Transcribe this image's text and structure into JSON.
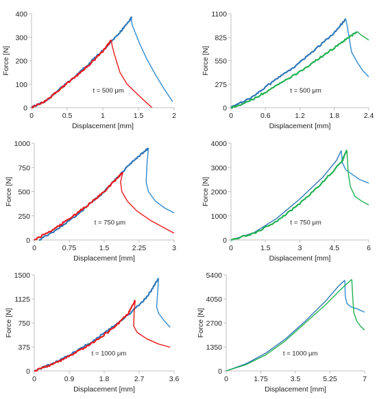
{
  "colors": {
    "blue": "#2e75b6",
    "lightblue": "#2e8bd0",
    "red": "#e8191b",
    "green": "#21b050"
  },
  "chart_data": [
    {
      "type": "line",
      "xlabel": "Displacement [mm]",
      "ylabel": "Force [N]",
      "xlim": [
        0,
        2
      ],
      "ylim": [
        0,
        400
      ],
      "xticks": [
        "0",
        "0.5",
        "1",
        "1.5",
        "2"
      ],
      "yticks": [
        "0",
        "100",
        "200",
        "300",
        "400"
      ],
      "annotation": "t = 500 μm",
      "series": [
        {
          "color": "blue",
          "noisy": true,
          "x": [
            0,
            0.2,
            0.4,
            0.6,
            0.8,
            1.0,
            1.2,
            1.38,
            1.4
          ],
          "y": [
            0,
            30,
            80,
            130,
            185,
            245,
            305,
            375,
            383
          ]
        },
        {
          "color": "lightblue",
          "x": [
            1.4,
            1.41,
            1.44,
            1.52,
            1.62,
            1.74,
            1.86,
            1.98
          ],
          "y": [
            383,
            355,
            330,
            270,
            205,
            140,
            80,
            25
          ]
        },
        {
          "color": "red",
          "noisy": true,
          "x": [
            0,
            0.2,
            0.4,
            0.6,
            0.8,
            1.0,
            1.12
          ],
          "y": [
            0,
            28,
            78,
            128,
            180,
            240,
            288
          ]
        },
        {
          "color": "red",
          "x": [
            1.12,
            1.13,
            1.16,
            1.24,
            1.34,
            1.46,
            1.58,
            1.69
          ],
          "y": [
            288,
            265,
            230,
            150,
            100,
            65,
            30,
            0
          ]
        }
      ]
    },
    {
      "type": "line",
      "xlabel": "Displacement [mm]",
      "ylabel": "Force [N]",
      "xlim": [
        0,
        2.4
      ],
      "ylim": [
        0,
        1100
      ],
      "xticks": [
        "0",
        "0.6",
        "1.2",
        "1.8",
        "2.4"
      ],
      "yticks": [
        "0",
        "275",
        "550",
        "825",
        "1100"
      ],
      "annotation": "t = 500 μm",
      "series": [
        {
          "color": "blue",
          "noisy": true,
          "x": [
            0,
            0.3,
            0.6,
            0.9,
            1.2,
            1.5,
            1.8,
            2.0
          ],
          "y": [
            0,
            100,
            240,
            380,
            530,
            700,
            880,
            1040
          ]
        },
        {
          "color": "lightblue",
          "x": [
            2.0,
            2.02,
            2.05,
            2.1,
            2.2,
            2.3,
            2.4
          ],
          "y": [
            1040,
            970,
            850,
            650,
            530,
            430,
            360
          ]
        },
        {
          "color": "green",
          "noisy": true,
          "x": [
            0,
            0.3,
            0.6,
            0.9,
            1.2,
            1.5,
            1.8,
            2.0,
            2.2
          ],
          "y": [
            0,
            70,
            180,
            300,
            420,
            560,
            700,
            800,
            890
          ]
        },
        {
          "color": "green",
          "x": [
            2.2,
            2.25,
            2.3,
            2.35,
            2.4
          ],
          "y": [
            890,
            860,
            835,
            815,
            790
          ]
        }
      ]
    },
    {
      "type": "line",
      "xlabel": "Displacement [mm]",
      "ylabel": "Force [N]",
      "xlim": [
        0,
        3
      ],
      "ylim": [
        0,
        1000
      ],
      "xticks": [
        "0",
        "0.75",
        "1.5",
        "2.25",
        "3"
      ],
      "yticks": [
        "0",
        "250",
        "500",
        "750",
        "1000"
      ],
      "annotation": "t = 750 μm",
      "series": [
        {
          "color": "blue",
          "noisy": true,
          "x": [
            0.1,
            0.5,
            1.0,
            1.5,
            2.0,
            2.3,
            2.45
          ],
          "y": [
            0,
            110,
            290,
            500,
            760,
            890,
            950
          ]
        },
        {
          "color": "lightblue",
          "x": [
            2.45,
            2.42,
            2.4,
            2.45,
            2.6,
            2.8,
            3.0
          ],
          "y": [
            950,
            800,
            600,
            500,
            400,
            330,
            280
          ]
        },
        {
          "color": "red",
          "noisy": true,
          "x": [
            0,
            0.3,
            0.6,
            0.9,
            1.2,
            1.5,
            1.8,
            1.9
          ],
          "y": [
            0,
            80,
            170,
            270,
            380,
            500,
            650,
            700
          ]
        },
        {
          "color": "red",
          "x": [
            1.9,
            1.85,
            1.88,
            2.0,
            2.2,
            2.5,
            3.0
          ],
          "y": [
            700,
            600,
            500,
            400,
            300,
            200,
            70
          ]
        }
      ]
    },
    {
      "type": "line",
      "xlabel": "Displacement [mm]",
      "ylabel": "Force [N]",
      "xlim": [
        0,
        6
      ],
      "ylim": [
        0,
        4000
      ],
      "xticks": [
        "0",
        "1.5",
        "3",
        "4.5",
        "6"
      ],
      "yticks": [
        "0",
        "1000",
        "2000",
        "3000",
        "4000"
      ],
      "annotation": "t = 750 μm",
      "series": [
        {
          "color": "blue",
          "x": [
            0,
            1,
            2,
            3,
            4,
            4.6,
            4.8
          ],
          "y": [
            0,
            300,
            900,
            1700,
            2600,
            3300,
            3700
          ]
        },
        {
          "color": "lightblue",
          "x": [
            4.8,
            4.85,
            5.0,
            5.3,
            5.6,
            6.0
          ],
          "y": [
            3700,
            3200,
            2900,
            2700,
            2500,
            2350
          ]
        },
        {
          "color": "green",
          "noisy": true,
          "x": [
            0,
            1,
            2,
            3,
            4,
            4.8,
            5.05
          ],
          "y": [
            0,
            280,
            780,
            1500,
            2400,
            3200,
            3700
          ]
        },
        {
          "color": "green",
          "x": [
            5.05,
            5.1,
            5.2,
            5.4,
            5.7,
            6.0
          ],
          "y": [
            3700,
            2800,
            2200,
            1800,
            1600,
            1450
          ]
        }
      ]
    },
    {
      "type": "line",
      "xlabel": "Displacement [mm]",
      "ylabel": "Force [N]",
      "xlim": [
        0,
        3.6
      ],
      "ylim": [
        0,
        1500
      ],
      "xticks": [
        "0",
        "0.9",
        "1.8",
        "2.7",
        "3.6"
      ],
      "yticks": [
        "0",
        "375",
        "750",
        "1125",
        "1500"
      ],
      "annotation": "t = 1000 μm",
      "series": [
        {
          "color": "blue",
          "noisy": true,
          "x": [
            0,
            0.5,
            1.0,
            1.5,
            2.0,
            2.5,
            2.9,
            3.2
          ],
          "y": [
            0,
            120,
            280,
            460,
            680,
            920,
            1150,
            1450
          ]
        },
        {
          "color": "lightblue",
          "x": [
            3.2,
            3.18,
            3.15,
            3.2,
            3.35,
            3.5
          ],
          "y": [
            1450,
            1250,
            1000,
            900,
            780,
            680
          ]
        },
        {
          "color": "red",
          "noisy": true,
          "x": [
            0,
            0.5,
            1.0,
            1.5,
            2.0,
            2.4,
            2.6
          ],
          "y": [
            0,
            110,
            260,
            440,
            650,
            880,
            1100
          ]
        },
        {
          "color": "red",
          "x": [
            2.6,
            2.57,
            2.56,
            2.65,
            2.9,
            3.2,
            3.5
          ],
          "y": [
            1100,
            900,
            700,
            600,
            500,
            420,
            370
          ]
        }
      ]
    },
    {
      "type": "line",
      "xlabel": "Displacement [mm]",
      "ylabel": "Force [N]",
      "xlim": [
        0,
        7
      ],
      "ylim": [
        0,
        5400
      ],
      "xticks": [
        "0",
        "1.75",
        "3.5",
        "5.25",
        "7"
      ],
      "yticks": [
        "0",
        "1350",
        "2700",
        "4050",
        "5400"
      ],
      "annotation": "t = 1000 μm",
      "series": [
        {
          "color": "blue",
          "x": [
            0,
            1,
            2,
            3,
            4,
            5,
            5.7,
            6.0
          ],
          "y": [
            0,
            400,
            1000,
            1800,
            2800,
            3900,
            4800,
            5100
          ]
        },
        {
          "color": "lightblue",
          "x": [
            6.0,
            6.02,
            6.1,
            6.3,
            6.6,
            7.0
          ],
          "y": [
            5100,
            4200,
            3800,
            3600,
            3500,
            3300
          ]
        },
        {
          "color": "green",
          "x": [
            0,
            1,
            2,
            3,
            4,
            5,
            5.9,
            6.35
          ],
          "y": [
            0,
            350,
            900,
            1700,
            2700,
            3700,
            4700,
            5150
          ]
        },
        {
          "color": "green",
          "x": [
            6.35,
            6.4,
            6.45,
            6.6,
            6.8,
            7.0
          ],
          "y": [
            5150,
            4100,
            3300,
            2800,
            2500,
            2300
          ]
        }
      ]
    }
  ]
}
